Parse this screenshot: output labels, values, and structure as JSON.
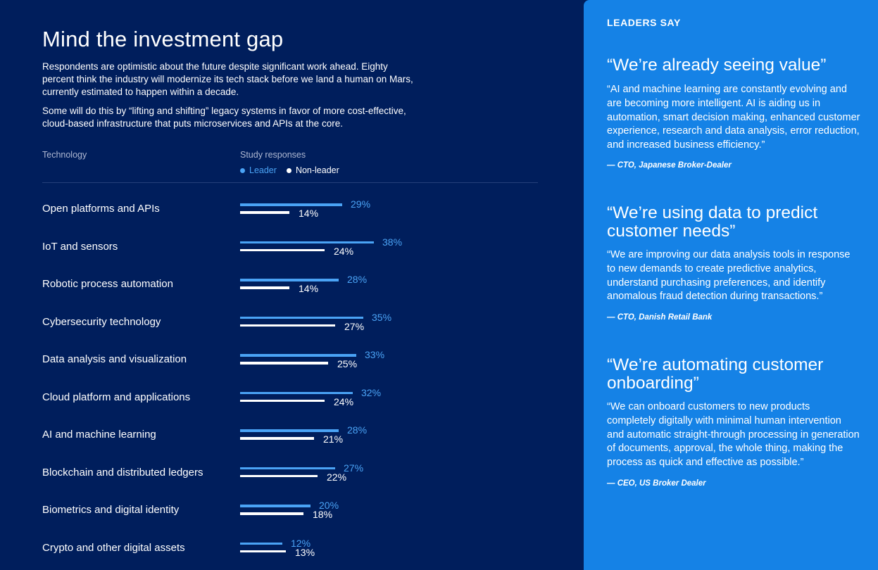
{
  "title": "Mind the investment gap",
  "paragraphs": [
    "Respondents are optimistic about the future despite significant work ahead. Eighty percent think the industry will modernize its tech stack before we land a human on Mars, currently estimated to happen within a decade.",
    "Some will do this by “lifting and shifting” legacy systems in favor of more cost-effective, cloud-based infrastructure that puts microservices and APIs at the core."
  ],
  "table_headers": {
    "technology": "Technology",
    "study": "Study responses"
  },
  "legend": {
    "leader": "Leader",
    "non_leader": "Non-leader"
  },
  "colors": {
    "leader": "#4aa3f5",
    "non_leader": "#ffffff",
    "background": "#001e5c",
    "panel": "#1582e6"
  },
  "chart_data": {
    "type": "bar",
    "orientation": "horizontal",
    "categories": [
      "Open platforms and APIs",
      "IoT and sensors",
      "Robotic process automation",
      "Cybersecurity technology",
      "Data analysis and visualization",
      "Cloud platform and applications",
      "AI and machine learning",
      "Blockchain and distributed ledgers",
      "Biometrics and digital identity",
      "Crypto and other digital assets"
    ],
    "series": [
      {
        "name": "Leader",
        "values": [
          29,
          38,
          28,
          35,
          33,
          32,
          28,
          27,
          20,
          12
        ]
      },
      {
        "name": "Non-leader",
        "values": [
          14,
          24,
          14,
          27,
          25,
          24,
          21,
          22,
          18,
          13
        ]
      }
    ],
    "unit": "%",
    "xlim": [
      0,
      40
    ],
    "grid": false,
    "legend_position": "top"
  },
  "sidebar": {
    "heading": "LEADERS SAY",
    "quotes": [
      {
        "headline": "“We’re already seeing value”",
        "body": "“AI and machine learning are constantly evolving and are becoming more intelligent. AI is aiding us in automation, smart decision making, enhanced customer experience, research and data analysis, error reduction, and increased business efficiency.”",
        "attribution": "— CTO, Japanese Broker-Dealer"
      },
      {
        "headline": "“We’re using data to predict customer needs”",
        "body": "“We are improving our data analysis tools in response to new demands to create predictive analytics, understand purchasing preferences, and identify anomalous fraud detection during transactions.”",
        "attribution": "— CTO, Danish Retail Bank"
      },
      {
        "headline": "“We’re automating customer onboarding”",
        "body": "“We can onboard customers to new products completely digitally with minimal human intervention and automatic straight-through processing in generation of documents, approval, the whole thing, making the process as quick and effective as possible.”",
        "attribution": "— CEO, US Broker Dealer"
      }
    ]
  }
}
